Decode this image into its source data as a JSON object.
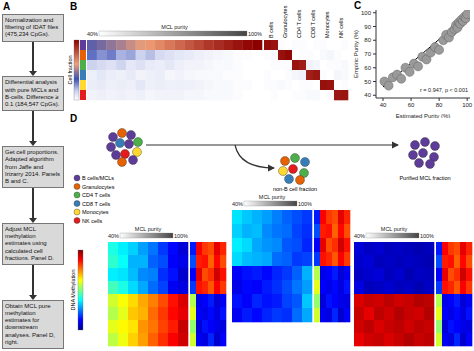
{
  "panels": [
    "A",
    "B",
    "C",
    "D"
  ],
  "flowchart": {
    "steps": [
      "Normalization and filtering of IDAT files (475,234 CpGs).",
      "Differential analysis with pure MCLs and B-cells. Difference ≥ 0.1 (184,547 CpGs).",
      "Get cell proportions. Adapted algorithm from Jaffe and Irizarry 2014. Panels B and C.",
      "Adjust MCL methylation estimates using calculated cell fractions. Panel D.",
      "Obtain MCL pure methylation estimates for downstream analyses. Panel D, right."
    ]
  },
  "panel_b": {
    "colorbar_label": "Cell fraction",
    "color_range": [
      0,
      1
    ],
    "header": {
      "left": "40%",
      "title": "MCL purity",
      "right": "100%"
    },
    "mcl": [
      [
        0.4,
        0.43,
        0.47,
        0.5,
        0.54,
        0.58,
        0.62,
        0.66,
        0.7,
        0.74,
        0.78,
        0.82,
        0.86,
        0.89,
        0.92,
        0.95,
        0.98,
        1.0
      ],
      [
        0.3,
        0.25,
        0.28,
        0.2,
        0.22,
        0.15,
        0.18,
        0.12,
        0.1,
        0.08,
        0.07,
        0.05,
        0.04,
        0.03,
        0.02,
        0.01,
        0.01,
        0.0
      ],
      [
        0.15,
        0.12,
        0.1,
        0.14,
        0.08,
        0.1,
        0.07,
        0.06,
        0.08,
        0.05,
        0.04,
        0.04,
        0.03,
        0.02,
        0.02,
        0.01,
        0.0,
        0.0
      ],
      [
        0.05,
        0.08,
        0.06,
        0.05,
        0.07,
        0.04,
        0.05,
        0.06,
        0.03,
        0.04,
        0.03,
        0.02,
        0.02,
        0.02,
        0.01,
        0.01,
        0.0,
        0.0
      ],
      [
        0.06,
        0.07,
        0.05,
        0.06,
        0.05,
        0.08,
        0.05,
        0.06,
        0.05,
        0.05,
        0.05,
        0.04,
        0.03,
        0.02,
        0.02,
        0.01,
        0.01,
        0.0
      ],
      [
        0.04,
        0.05,
        0.04,
        0.05,
        0.04,
        0.05,
        0.03,
        0.04,
        0.04,
        0.04,
        0.03,
        0.03,
        0.02,
        0.02,
        0.02,
        0.01,
        0.0,
        0.0
      ]
    ],
    "references": [
      {
        "label": "B cells",
        "color": "#5e3c99",
        "cells": [
          [
            0.97,
            0.95
          ],
          [
            0.01,
            0.02
          ],
          [
            0.0,
            0.01
          ],
          [
            0.01,
            0.0
          ],
          [
            0.01,
            0.01
          ],
          [
            0.0,
            0.01
          ]
        ]
      },
      {
        "label": "Granulocytes",
        "color": "#e66101",
        "cells": [
          [
            0.01,
            0.0
          ],
          [
            0.96,
            0.98
          ],
          [
            0.01,
            0.01
          ],
          [
            0.0,
            0.01
          ],
          [
            0.02,
            0.01
          ],
          [
            0.0,
            0.0
          ]
        ]
      },
      {
        "label": "CD4 T cells",
        "color": "#4daf4a",
        "cells": [
          [
            0.01,
            0.01
          ],
          [
            0.0,
            0.01
          ],
          [
            0.95,
            0.93
          ],
          [
            0.03,
            0.04
          ],
          [
            0.0,
            0.01
          ],
          [
            0.01,
            0.01
          ]
        ]
      },
      {
        "label": "CD8 T cells",
        "color": "#377eb8",
        "cells": [
          [
            0.0,
            0.01
          ],
          [
            0.01,
            0.0
          ],
          [
            0.04,
            0.03
          ],
          [
            0.92,
            0.94
          ],
          [
            0.01,
            0.0
          ],
          [
            0.02,
            0.02
          ]
        ]
      },
      {
        "label": "Monocytes",
        "color": "#ffd92f",
        "cells": [
          [
            0.01,
            0.0
          ],
          [
            0.02,
            0.03
          ],
          [
            0.0,
            0.01
          ],
          [
            0.01,
            0.0
          ],
          [
            0.96,
            0.95
          ],
          [
            0.0,
            0.01
          ]
        ]
      },
      {
        "label": "NK cells",
        "color": "#e41a1c",
        "cells": [
          [
            0.0,
            0.01
          ],
          [
            0.01,
            0.0
          ],
          [
            0.01,
            0.02
          ],
          [
            0.03,
            0.02
          ],
          [
            0.0,
            0.01
          ],
          [
            0.94,
            0.95
          ]
        ]
      }
    ]
  },
  "chart_data": {
    "type": "scatter",
    "x_label": "Estimated Purity (%)",
    "y_label": "Empiric Purity (%)",
    "annotation": "r = 0.947, p < 0.001",
    "xlim": [
      35,
      102
    ],
    "ylim": [
      38,
      102
    ],
    "xticks": [
      40,
      60,
      80,
      100
    ],
    "yticks": [
      40,
      50,
      60,
      70,
      80,
      90,
      100
    ],
    "grid": false,
    "color": "#9a9a9a",
    "marker": "circle",
    "x": [
      41,
      44,
      47,
      50,
      53,
      56,
      59,
      62,
      65,
      68,
      71,
      74,
      77,
      80,
      83,
      85,
      87,
      89,
      91,
      92,
      93,
      94,
      95,
      96,
      97,
      98,
      99,
      100
    ],
    "y": [
      50,
      47,
      53,
      55,
      52,
      60,
      57,
      63,
      61,
      68,
      66,
      71,
      75,
      73,
      80,
      84,
      82,
      86,
      88,
      91,
      89,
      93,
      92,
      95,
      94,
      97,
      96,
      99
    ],
    "fit": {
      "x": [
        40,
        100
      ],
      "y": [
        46,
        98
      ],
      "color": "#000000",
      "line_style": "solid"
    }
  },
  "panel_d": {
    "legend": [
      {
        "label": "B cells/MCLs",
        "color": "#5e3c99"
      },
      {
        "label": "Granulocytes",
        "color": "#e66101"
      },
      {
        "label": "CD4 T cells",
        "color": "#4daf4a"
      },
      {
        "label": "CD8 T cells",
        "color": "#377eb8"
      },
      {
        "label": "Monocytes",
        "color": "#ffd92f"
      },
      {
        "label": "NK cells",
        "color": "#e41a1c"
      }
    ],
    "captions": {
      "non_b": "non-B cell fraction",
      "purified": "Purified MCL fraction"
    },
    "colorbar_label": "DNA Methylation",
    "color_range": [
      0,
      1
    ],
    "heatmaps": [
      {
        "header": {
          "left": "40%",
          "title": "MCL purity",
          "right": "100%"
        },
        "mcl": [
          [
            0.4,
            0.36,
            0.33,
            0.28,
            0.24,
            0.18,
            0.13,
            0.08
          ],
          [
            0.42,
            0.38,
            0.3,
            0.3,
            0.22,
            0.2,
            0.12,
            0.1
          ],
          [
            0.36,
            0.35,
            0.31,
            0.26,
            0.25,
            0.17,
            0.14,
            0.07
          ],
          [
            0.44,
            0.4,
            0.34,
            0.29,
            0.23,
            0.19,
            0.11,
            0.09
          ],
          [
            0.58,
            0.62,
            0.66,
            0.71,
            0.75,
            0.8,
            0.86,
            0.91
          ],
          [
            0.55,
            0.6,
            0.68,
            0.7,
            0.77,
            0.82,
            0.87,
            0.9
          ],
          [
            0.6,
            0.63,
            0.65,
            0.73,
            0.76,
            0.81,
            0.85,
            0.93
          ],
          [
            0.56,
            0.61,
            0.67,
            0.72,
            0.78,
            0.83,
            0.88,
            0.92
          ]
        ],
        "cell_types": [
          [
            0.15,
            0.88,
            0.82,
            0.8,
            0.9,
            0.84
          ],
          [
            0.2,
            0.85,
            0.86,
            0.78,
            0.87,
            0.8
          ],
          [
            0.12,
            0.9,
            0.8,
            0.83,
            0.92,
            0.86
          ],
          [
            0.18,
            0.86,
            0.84,
            0.79,
            0.88,
            0.82
          ],
          [
            0.55,
            0.1,
            0.12,
            0.15,
            0.08,
            0.11
          ],
          [
            0.6,
            0.12,
            0.1,
            0.13,
            0.09,
            0.14
          ],
          [
            0.52,
            0.08,
            0.14,
            0.12,
            0.1,
            0.09
          ],
          [
            0.58,
            0.11,
            0.09,
            0.16,
            0.07,
            0.12
          ]
        ]
      },
      {
        "header": {
          "left": "40%",
          "title": "MCL purity",
          "right": "100%"
        },
        "mcl": [
          [
            0.35,
            0.32,
            0.3,
            0.28,
            0.25,
            0.22,
            0.2,
            0.18
          ],
          [
            0.33,
            0.3,
            0.31,
            0.26,
            0.24,
            0.23,
            0.19,
            0.17
          ],
          [
            0.36,
            0.34,
            0.29,
            0.27,
            0.26,
            0.21,
            0.2,
            0.16
          ],
          [
            0.34,
            0.31,
            0.3,
            0.29,
            0.23,
            0.22,
            0.18,
            0.19
          ],
          [
            0.12,
            0.14,
            0.15,
            0.13,
            0.16,
            0.18,
            0.22,
            0.3
          ],
          [
            0.1,
            0.13,
            0.12,
            0.15,
            0.17,
            0.2,
            0.24,
            0.28
          ],
          [
            0.14,
            0.12,
            0.16,
            0.14,
            0.15,
            0.19,
            0.21,
            0.32
          ],
          [
            0.11,
            0.15,
            0.13,
            0.16,
            0.18,
            0.17,
            0.23,
            0.29
          ]
        ],
        "cell_types": [
          [
            0.15,
            0.88,
            0.82,
            0.8,
            0.9,
            0.84
          ],
          [
            0.2,
            0.85,
            0.86,
            0.78,
            0.87,
            0.8
          ],
          [
            0.12,
            0.9,
            0.8,
            0.83,
            0.92,
            0.86
          ],
          [
            0.18,
            0.86,
            0.84,
            0.79,
            0.88,
            0.82
          ],
          [
            0.55,
            0.1,
            0.12,
            0.15,
            0.08,
            0.11
          ],
          [
            0.6,
            0.12,
            0.1,
            0.13,
            0.09,
            0.14
          ],
          [
            0.52,
            0.08,
            0.14,
            0.12,
            0.1,
            0.09
          ],
          [
            0.58,
            0.11,
            0.09,
            0.16,
            0.07,
            0.12
          ]
        ]
      },
      {
        "header": {
          "left": "40%",
          "title": "MCL purity",
          "right": "100%"
        },
        "mcl": [
          [
            0.08,
            0.06,
            0.07,
            0.05,
            0.06,
            0.05,
            0.04,
            0.05
          ],
          [
            0.07,
            0.08,
            0.05,
            0.06,
            0.05,
            0.06,
            0.05,
            0.04
          ],
          [
            0.06,
            0.07,
            0.08,
            0.05,
            0.07,
            0.04,
            0.06,
            0.05
          ],
          [
            0.09,
            0.05,
            0.06,
            0.07,
            0.05,
            0.06,
            0.04,
            0.06
          ],
          [
            0.91,
            0.93,
            0.92,
            0.94,
            0.92,
            0.93,
            0.95,
            0.94
          ],
          [
            0.93,
            0.9,
            0.94,
            0.92,
            0.95,
            0.93,
            0.92,
            0.95
          ],
          [
            0.92,
            0.94,
            0.91,
            0.93,
            0.94,
            0.92,
            0.94,
            0.93
          ],
          [
            0.9,
            0.92,
            0.93,
            0.91,
            0.93,
            0.95,
            0.93,
            0.94
          ]
        ],
        "cell_types": [
          [
            0.15,
            0.88,
            0.82,
            0.8,
            0.9,
            0.84
          ],
          [
            0.2,
            0.85,
            0.86,
            0.78,
            0.87,
            0.8
          ],
          [
            0.12,
            0.9,
            0.8,
            0.83,
            0.92,
            0.86
          ],
          [
            0.18,
            0.86,
            0.84,
            0.79,
            0.88,
            0.82
          ],
          [
            0.55,
            0.1,
            0.12,
            0.15,
            0.08,
            0.11
          ],
          [
            0.6,
            0.12,
            0.1,
            0.13,
            0.09,
            0.14
          ],
          [
            0.52,
            0.08,
            0.14,
            0.12,
            0.1,
            0.09
          ],
          [
            0.58,
            0.11,
            0.09,
            0.16,
            0.07,
            0.12
          ]
        ]
      }
    ]
  }
}
